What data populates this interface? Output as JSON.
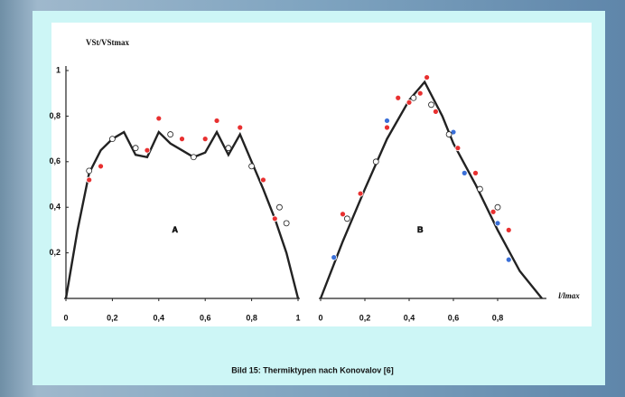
{
  "chart_data": [
    {
      "type": "line",
      "y_label": "VSt/VStmax",
      "annotation": "A",
      "xlim": [
        0,
        1
      ],
      "ylim": [
        0,
        1
      ],
      "xticks": [
        0,
        {
          "value": 0.2,
          "label": "0,2"
        },
        {
          "value": 0.4,
          "label": "0,4"
        },
        {
          "value": 0.6,
          "label": "0,6"
        },
        {
          "value": 0.8,
          "label": "0,8"
        },
        1
      ],
      "yticks": [
        {
          "value": 0.2,
          "label": "0,2"
        },
        {
          "value": 0.4,
          "label": "0,4"
        },
        {
          "value": 0.6,
          "label": "0,6"
        },
        {
          "value": 0.8,
          "label": "0,8"
        },
        1
      ],
      "series": [
        {
          "mode": "line",
          "color": "#222222",
          "x": [
            0,
            0.05,
            0.1,
            0.15,
            0.2,
            0.25,
            0.3,
            0.35,
            0.4,
            0.45,
            0.5,
            0.55,
            0.6,
            0.65,
            0.7,
            0.75,
            0.8,
            0.85,
            0.9,
            0.95,
            1
          ],
          "values": [
            0,
            0.3,
            0.55,
            0.65,
            0.7,
            0.73,
            0.63,
            0.62,
            0.73,
            0.68,
            0.65,
            0.62,
            0.64,
            0.73,
            0.63,
            0.72,
            0.6,
            0.48,
            0.35,
            0.2,
            0
          ]
        },
        {
          "mode": "points",
          "color": "#e83030",
          "x": [
            0.1,
            0.15,
            0.35,
            0.4,
            0.5,
            0.6,
            0.65,
            0.75,
            0.85,
            0.9
          ],
          "values": [
            0.52,
            0.58,
            0.65,
            0.79,
            0.7,
            0.7,
            0.78,
            0.75,
            0.52,
            0.35
          ]
        },
        {
          "mode": "points",
          "color": "#ffffff",
          "x": [
            0.1,
            0.2,
            0.3,
            0.45,
            0.55,
            0.7,
            0.8,
            0.92,
            0.95
          ],
          "values": [
            0.56,
            0.7,
            0.66,
            0.72,
            0.62,
            0.66,
            0.58,
            0.4,
            0.33
          ]
        }
      ]
    },
    {
      "type": "line",
      "x_label": "l/lmax",
      "annotation": "B",
      "xlim": [
        0,
        1
      ],
      "ylim": [
        0,
        1
      ],
      "xticks": [
        0,
        {
          "value": 0.2,
          "label": "0,2"
        },
        {
          "value": 0.4,
          "label": "0,4"
        },
        {
          "value": 0.6,
          "label": "0,6"
        },
        {
          "value": 0.8,
          "label": "0,8"
        }
      ],
      "series": [
        {
          "mode": "line",
          "color": "#222222",
          "x": [
            0,
            0.1,
            0.2,
            0.3,
            0.4,
            0.47,
            0.55,
            0.6,
            0.7,
            0.8,
            0.9,
            1
          ],
          "values": [
            0,
            0.25,
            0.48,
            0.7,
            0.87,
            0.95,
            0.8,
            0.68,
            0.5,
            0.3,
            0.12,
            0
          ]
        },
        {
          "mode": "points",
          "color": "#e83030",
          "x": [
            0.1,
            0.18,
            0.3,
            0.35,
            0.4,
            0.45,
            0.48,
            0.52,
            0.62,
            0.7,
            0.78,
            0.85
          ],
          "values": [
            0.37,
            0.46,
            0.75,
            0.88,
            0.86,
            0.9,
            0.97,
            0.82,
            0.66,
            0.55,
            0.38,
            0.3
          ]
        },
        {
          "mode": "points",
          "color": "#3a6fd8",
          "x": [
            0.06,
            0.3,
            0.6,
            0.65,
            0.8,
            0.85
          ],
          "values": [
            0.18,
            0.78,
            0.73,
            0.55,
            0.33,
            0.17
          ]
        },
        {
          "mode": "points",
          "color": "#ffffff",
          "x": [
            0.12,
            0.25,
            0.42,
            0.5,
            0.58,
            0.72,
            0.8
          ],
          "values": [
            0.35,
            0.6,
            0.88,
            0.85,
            0.72,
            0.48,
            0.4
          ]
        }
      ]
    }
  ],
  "caption": "Bild 15: Thermiktypen nach Konovalov [6]"
}
